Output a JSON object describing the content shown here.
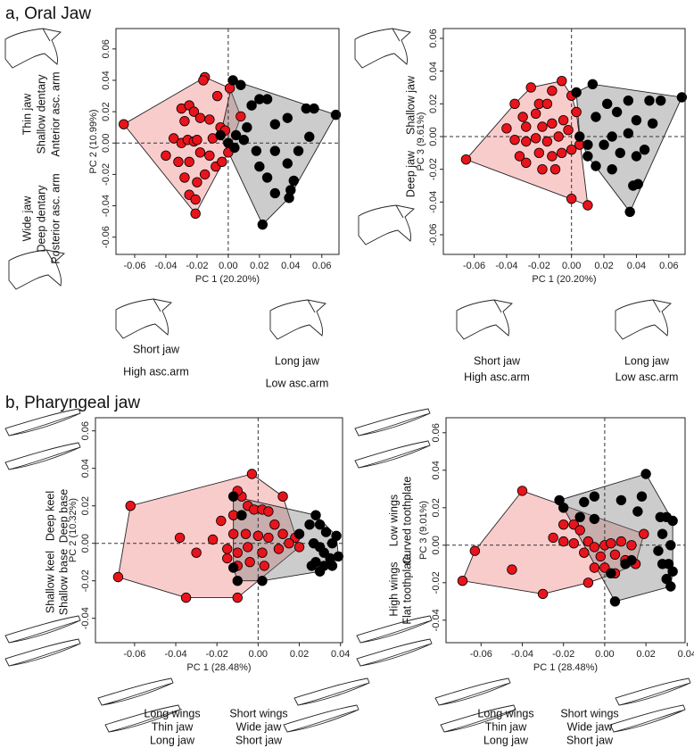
{
  "panel_titles": [
    "a, Oral Jaw",
    "b, Pharyngeal jaw"
  ],
  "chart_data": [
    {
      "type": "scatter",
      "xlabel": "PC 1 (20.20%)",
      "ylabel": "PC 2 (10.99%)",
      "xlim": [
        -0.072,
        0.071
      ],
      "ylim": [
        -0.071,
        0.073
      ],
      "xticks": [
        -0.06,
        -0.04,
        -0.02,
        {
          "value": 0,
          "label": "0.00"
        },
        0.02,
        0.04,
        0.06
      ],
      "yticks": [
        -0.06,
        -0.04,
        -0.02,
        {
          "value": 0,
          "label": "0.00"
        },
        0.02,
        0.04,
        0.06
      ],
      "annotations": {
        "y_high": [
          "Thin jaw",
          "Shallow dentary",
          "Anterior asc. arm"
        ],
        "y_low": [
          "Wide jaw",
          "Deep dentary",
          "Posterior asc. arm"
        ],
        "x_low": [
          "Short jaw",
          "High asc.arm"
        ],
        "x_high": [
          "Long jaw",
          "Low asc.arm"
        ]
      },
      "series": [
        {
          "color": "#e8141c",
          "hull_color": "#f08080",
          "x": [
            -0.067,
            -0.015,
            -0.016,
            -0.03,
            -0.025,
            -0.022,
            -0.028,
            -0.018,
            -0.012,
            -0.035,
            -0.03,
            -0.026,
            -0.022,
            -0.02,
            -0.01,
            -0.005,
            -0.002,
            -0.04,
            -0.032,
            -0.025,
            -0.018,
            -0.012,
            -0.008,
            -0.004,
            0.0,
            -0.028,
            -0.02,
            -0.015,
            -0.025,
            -0.021,
            -0.021,
            -0.007,
            0.001,
            0.008
          ],
          "values": [
            0.012,
            0.042,
            0.04,
            0.022,
            0.024,
            0.02,
            0.014,
            0.016,
            0.015,
            0.003,
            0.0,
            0.002,
            0.001,
            0.002,
            0.003,
            0.01,
            0.008,
            -0.008,
            -0.012,
            -0.012,
            -0.006,
            -0.008,
            -0.015,
            -0.012,
            -0.006,
            -0.022,
            -0.025,
            -0.02,
            -0.033,
            -0.036,
            -0.045,
            0.03,
            0.035,
            0.017
          ]
        },
        {
          "color": "#000000",
          "hull_color": "#808080",
          "x": [
            0.003,
            0.008,
            0.015,
            0.02,
            0.025,
            0.03,
            0.038,
            0.05,
            0.055,
            0.069,
            0.052,
            0.045,
            0.038,
            0.042,
            0.04,
            0.039,
            0.03,
            0.02,
            0.025,
            0.012,
            0.005,
            -0.005,
            0.0,
            0.004,
            0.018,
            0.01,
            0.03,
            0.022
          ],
          "values": [
            0.04,
            0.037,
            0.024,
            0.028,
            0.028,
            0.012,
            0.016,
            0.022,
            0.022,
            0.018,
            0.004,
            -0.005,
            -0.013,
            -0.024,
            -0.03,
            -0.035,
            -0.032,
            -0.015,
            -0.022,
            0.01,
            0.005,
            0.005,
            0.0,
            -0.003,
            -0.005,
            0.002,
            -0.005,
            -0.052
          ]
        }
      ]
    },
    {
      "type": "scatter",
      "xlabel": "PC 1 (20.20%)",
      "ylabel": "PC 3 (9.61%)",
      "xlim": [
        -0.079,
        0.07
      ],
      "ylim": [
        -0.072,
        0.066
      ],
      "xticks": [
        -0.06,
        -0.04,
        -0.02,
        {
          "value": 0,
          "label": "0.00"
        },
        0.02,
        0.04,
        0.06
      ],
      "yticks": [
        -0.06,
        -0.04,
        -0.02,
        {
          "value": 0,
          "label": "0.00"
        },
        0.02,
        0.04,
        0.06
      ],
      "annotations": {
        "y_high": [
          "Shallow jaw"
        ],
        "y_low": [
          "Deep jaw"
        ],
        "x_low": [
          "Short jaw",
          "High asc.arm"
        ],
        "x_high": [
          "Long jaw",
          "Low asc.arm"
        ]
      },
      "series": [
        {
          "color": "#e8141c",
          "hull_color": "#f08080",
          "x": [
            -0.065,
            -0.006,
            -0.012,
            -0.025,
            -0.035,
            -0.02,
            -0.015,
            -0.03,
            -0.022,
            -0.04,
            -0.028,
            -0.018,
            -0.012,
            -0.005,
            -0.035,
            -0.028,
            -0.022,
            -0.015,
            -0.008,
            -0.002,
            -0.032,
            -0.028,
            -0.02,
            -0.012,
            -0.006,
            0.0,
            0.005,
            -0.018,
            -0.01,
            0.0,
            0.01,
            0.003,
            0.0
          ],
          "values": [
            -0.014,
            0.034,
            0.028,
            0.03,
            0.02,
            0.02,
            0.02,
            0.012,
            0.014,
            0.005,
            0.006,
            0.006,
            0.008,
            0.01,
            -0.002,
            -0.003,
            -0.001,
            -0.003,
            0.0,
            0.004,
            -0.012,
            -0.016,
            -0.01,
            -0.012,
            -0.01,
            -0.008,
            -0.005,
            -0.02,
            -0.02,
            -0.038,
            -0.042,
            0.015,
            0.025
          ]
        },
        {
          "color": "#000000",
          "hull_color": "#808080",
          "x": [
            0.003,
            0.013,
            0.068,
            0.055,
            0.048,
            0.035,
            0.022,
            0.015,
            0.028,
            0.04,
            0.05,
            0.035,
            0.025,
            0.02,
            0.01,
            0.005,
            0.03,
            0.045,
            0.04,
            0.015,
            0.025,
            0.038,
            0.041,
            0.036,
            0.01
          ],
          "values": [
            0.027,
            0.032,
            0.024,
            0.022,
            0.022,
            0.022,
            0.02,
            0.012,
            0.015,
            0.01,
            0.008,
            0.002,
            0.0,
            -0.005,
            -0.005,
            0.0,
            -0.01,
            -0.008,
            -0.012,
            -0.018,
            -0.02,
            -0.03,
            -0.029,
            -0.046,
            -0.012
          ]
        }
      ]
    },
    {
      "type": "scatter",
      "xlabel": "PC 1 (28.48%)",
      "ylabel": "PC 2 (10.32%)",
      "xlim": [
        -0.079,
        0.041
      ],
      "ylim": [
        -0.053,
        0.067
      ],
      "xticks": [
        -0.06,
        -0.04,
        -0.02,
        {
          "value": 0,
          "label": "0.00"
        },
        0.02,
        0.04
      ],
      "yticks": [
        -0.04,
        -0.02,
        {
          "value": 0,
          "label": "0.00"
        },
        0.02,
        0.04,
        0.06
      ],
      "annotations": {
        "y_high": [
          "Deep keel",
          "Deep base"
        ],
        "y_low": [
          "Shallow keel",
          "Shallow base"
        ],
        "x_low": [
          "Long wings",
          "Thin jaw",
          "Long jaw"
        ],
        "x_high": [
          "Short wings",
          "Wide jaw",
          "Short jaw"
        ]
      },
      "series": [
        {
          "color": "#e8141c",
          "hull_color": "#f08080",
          "x": [
            -0.068,
            -0.062,
            -0.003,
            0.012,
            -0.035,
            -0.01,
            -0.038,
            -0.03,
            -0.022,
            -0.015,
            -0.018,
            -0.012,
            -0.008,
            -0.005,
            -0.002,
            0.002,
            0.005,
            0.008,
            -0.012,
            -0.006,
            0.0,
            0.005,
            0.012,
            0.018,
            0.02,
            -0.015,
            -0.01,
            -0.005,
            0.002,
            0.01,
            0.015,
            -0.01,
            -0.004,
            0.003,
            -0.008,
            -0.01
          ],
          "values": [
            -0.018,
            0.02,
            0.037,
            0.025,
            -0.029,
            -0.029,
            0.003,
            -0.005,
            0.002,
            -0.008,
            0.012,
            0.015,
            0.015,
            0.02,
            0.018,
            0.018,
            0.017,
            0.01,
            0.005,
            0.005,
            0.004,
            0.003,
            0.005,
            0.003,
            -0.002,
            -0.003,
            -0.005,
            -0.002,
            -0.005,
            -0.003,
            0.0,
            -0.012,
            -0.01,
            -0.012,
            0.025,
            0.028
          ]
        },
        {
          "color": "#000000",
          "hull_color": "#808080",
          "x": [
            -0.012,
            0.025,
            0.028,
            0.03,
            0.033,
            0.036,
            0.038,
            0.039,
            0.035,
            0.032,
            0.03,
            0.027,
            0.028,
            0.032,
            0.036,
            0.03,
            0.026,
            0.02,
            -0.01,
            -0.012,
            -0.008,
            0.002
          ],
          "values": [
            0.025,
            0.01,
            0.015,
            0.01,
            0.006,
            0.0,
            0.004,
            -0.007,
            -0.008,
            -0.005,
            -0.002,
            0.0,
            -0.01,
            -0.012,
            -0.012,
            -0.015,
            -0.012,
            0.005,
            -0.02,
            -0.013,
            0.015,
            -0.02
          ]
        }
      ]
    },
    {
      "type": "scatter",
      "xlabel": "PC 1 (28.48%)",
      "ylabel": "PC 3 (9.01%)",
      "xlim": [
        -0.077,
        0.039
      ],
      "ylim": [
        -0.052,
        0.068
      ],
      "xticks": [
        -0.06,
        -0.04,
        -0.02,
        {
          "value": 0,
          "label": "0.00"
        },
        0.02,
        0.04
      ],
      "yticks": [
        -0.04,
        -0.02,
        {
          "value": 0,
          "label": "0.00"
        },
        0.02,
        0.04,
        0.06
      ],
      "annotations": {
        "y_high": [
          "Low wings",
          "Curved toothplate"
        ],
        "y_low": [
          "High wings",
          "Flat toothplate"
        ],
        "x_low": [
          "Long wings",
          "Thin jaw",
          "Long jaw"
        ],
        "x_high": [
          "Short wings",
          "Wide jaw",
          "Short jaw"
        ]
      },
      "series": [
        {
          "color": "#e8141c",
          "hull_color": "#f08080",
          "x": [
            -0.069,
            -0.063,
            -0.04,
            -0.03,
            -0.045,
            -0.02,
            -0.015,
            -0.012,
            -0.008,
            -0.02,
            -0.025,
            -0.015,
            -0.005,
            0.0,
            0.003,
            0.008,
            0.013,
            0.019,
            -0.01,
            -0.002,
            0.005,
            0.01,
            0.015,
            -0.005,
            0.0,
            -0.008,
            0.005
          ],
          "values": [
            -0.019,
            -0.003,
            0.029,
            -0.026,
            -0.013,
            0.011,
            0.011,
            0.008,
            0.002,
            0.002,
            0.004,
            0.001,
            -0.001,
            0.0,
            0.001,
            0.002,
            0.0,
            0.006,
            -0.004,
            -0.006,
            -0.005,
            -0.008,
            -0.01,
            -0.012,
            -0.012,
            -0.02,
            -0.015
          ]
        },
        {
          "color": "#000000",
          "hull_color": "#808080",
          "x": [
            0.02,
            -0.022,
            -0.01,
            -0.005,
            0.008,
            0.018,
            0.016,
            -0.02,
            -0.012,
            -0.005,
            0.027,
            0.03,
            0.033,
            0.028,
            0.032,
            0.026,
            0.028,
            0.031,
            0.033,
            0.03,
            0.032,
            0.005,
            0.003,
            0.01,
            0.013
          ],
          "values": [
            0.038,
            0.024,
            0.023,
            0.026,
            0.024,
            0.026,
            0.018,
            0.02,
            0.015,
            0.014,
            0.015,
            0.015,
            0.013,
            0.006,
            0.0,
            -0.003,
            -0.01,
            -0.01,
            -0.014,
            -0.018,
            -0.022,
            -0.03,
            -0.015,
            -0.01,
            -0.008
          ]
        }
      ]
    }
  ]
}
